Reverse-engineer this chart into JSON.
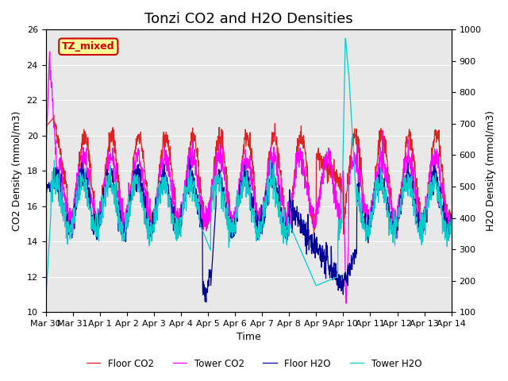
{
  "title": "Tonzi CO2 and H2O Densities",
  "xlabel": "Time",
  "ylabel_left": "CO2 Density (mmol/m3)",
  "ylabel_right": "H2O Density (mmol/m3)",
  "ylim_left": [
    10,
    26
  ],
  "ylim_right": [
    100,
    1000
  ],
  "xlim_days": [
    0,
    15
  ],
  "annotation_text": "TZ_mixed",
  "annotation_color": "#cc0000",
  "annotation_bg": "#ffff99",
  "bg_color": "#e8e8e8",
  "colors": {
    "floor_co2": "#dd2222",
    "tower_co2": "#ff00ff",
    "floor_h2o": "#000099",
    "tower_h2o": "#00cccc"
  },
  "legend_labels": [
    "Floor CO2",
    "Tower CO2",
    "Floor H2O",
    "Tower H2O"
  ],
  "xtick_labels": [
    "Mar 30",
    "Mar 31",
    "Apr 1",
    "Apr 2",
    "Apr 3",
    "Apr 4",
    "Apr 5",
    "Apr 6",
    "Apr 7",
    "Apr 8",
    "Apr 9",
    "Apr 10",
    "Apr 11",
    "Apr 12",
    "Apr 13",
    "Apr 14"
  ],
  "title_fontsize": 13,
  "axis_fontsize": 9,
  "tick_fontsize": 8
}
